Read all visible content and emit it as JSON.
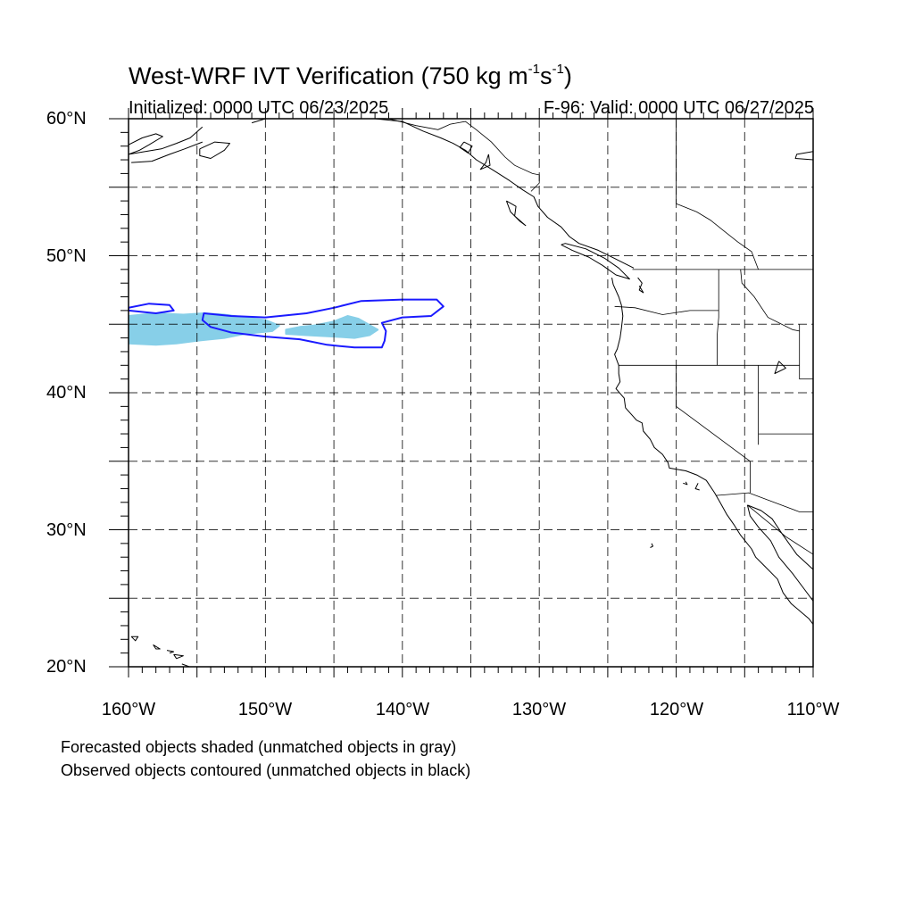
{
  "title": {
    "prefix": "West-WRF IVT Verification (750 kg m",
    "sup1": "-1",
    "mid": "s",
    "sup2": "-1",
    "suffix": ")"
  },
  "initialized": "Initialized: 0000 UTC 06/23/2025",
  "valid": "F-96: Valid: 0000 UTC 06/27/2025",
  "lat_labels": [
    "60°N",
    "50°N",
    "40°N",
    "30°N",
    "20°N"
  ],
  "lon_labels": [
    "160°W",
    "150°W",
    "140°W",
    "130°W",
    "120°W",
    "110°W"
  ],
  "footnotes": [
    "Forecasted objects shaded (unmatched objects in gray)",
    "Observed objects contoured (unmatched objects in black)"
  ],
  "colors": {
    "forecast_fill": "#87cfe8",
    "observed_contour": "#1a1aff",
    "coast": "#000000",
    "grid": "#000000"
  },
  "map": {
    "lon_range": [
      -160,
      -110
    ],
    "lat_range": [
      20,
      60
    ],
    "grid_lon_step": 5,
    "grid_lat_step": 5,
    "grid_style": "dashed",
    "forecast_objects": [
      {
        "coords": [
          [
            -160,
            45.6
          ],
          [
            -158,
            45.8
          ],
          [
            -156,
            45.7
          ],
          [
            -154.5,
            45.8
          ],
          [
            -153,
            45.7
          ],
          [
            -151.5,
            45.5
          ],
          [
            -150,
            45.3
          ],
          [
            -149,
            44.9
          ],
          [
            -149.5,
            44.5
          ],
          [
            -151.5,
            44.3
          ],
          [
            -153,
            44.0
          ],
          [
            -155,
            43.8
          ],
          [
            -156.5,
            43.6
          ],
          [
            -158,
            43.5
          ],
          [
            -160,
            43.6
          ]
        ]
      },
      {
        "coords": [
          [
            -148.5,
            44.6
          ],
          [
            -147.5,
            44.8
          ],
          [
            -146.5,
            44.9
          ],
          [
            -145,
            45.2
          ],
          [
            -144,
            45.6
          ],
          [
            -143.2,
            45.4
          ],
          [
            -142.5,
            45.0
          ],
          [
            -141.8,
            44.6
          ],
          [
            -142.4,
            44.2
          ],
          [
            -143.5,
            44.0
          ],
          [
            -145,
            44.1
          ],
          [
            -147,
            44.2
          ],
          [
            -148.5,
            44.3
          ]
        ]
      }
    ],
    "observed_objects": [
      {
        "coords": [
          [
            -160,
            46.2
          ],
          [
            -158.5,
            46.5
          ],
          [
            -157,
            46.4
          ],
          [
            -156.7,
            46.0
          ],
          [
            -158,
            45.8
          ],
          [
            -160,
            46.0
          ]
        ]
      },
      {
        "coords": [
          [
            -154.5,
            45.8
          ],
          [
            -152.5,
            45.6
          ],
          [
            -150,
            45.5
          ],
          [
            -147,
            45.8
          ],
          [
            -145,
            46.2
          ],
          [
            -143,
            46.7
          ],
          [
            -140,
            46.8
          ],
          [
            -137.5,
            46.8
          ],
          [
            -137,
            46.3
          ],
          [
            -137.9,
            45.6
          ],
          [
            -140,
            45.5
          ],
          [
            -141.5,
            45.1
          ],
          [
            -141.2,
            44.5
          ],
          [
            -141.3,
            43.8
          ],
          [
            -141.5,
            43.3
          ],
          [
            -143.5,
            43.3
          ],
          [
            -145.5,
            43.5
          ],
          [
            -147.5,
            43.9
          ],
          [
            -150,
            44.1
          ],
          [
            -152.5,
            44.4
          ],
          [
            -154,
            44.8
          ],
          [
            -154.6,
            45.3
          ],
          [
            -154.5,
            45.8
          ]
        ]
      }
    ],
    "coastlines": [
      [
        [
          -110,
          57.6
        ],
        [
          -111.2,
          57.4
        ],
        [
          -111.3,
          57.1
        ],
        [
          -110,
          57.0
        ]
      ],
      [
        [
          -160,
          58.1
        ],
        [
          -159,
          58.6
        ],
        [
          -158,
          58.9
        ],
        [
          -157.5,
          58.7
        ],
        [
          -158.5,
          58.1
        ],
        [
          -159.2,
          57.7
        ],
        [
          -160,
          57.4
        ],
        [
          -157.6,
          57.8
        ],
        [
          -156.5,
          58.2
        ],
        [
          -155.5,
          58.6
        ],
        [
          -154.6,
          59.4
        ]
      ],
      [
        [
          -159.8,
          56.8
        ],
        [
          -158.3,
          56.9
        ],
        [
          -157,
          57.4
        ],
        [
          -155.9,
          57.8
        ],
        [
          -154.6,
          58.3
        ]
      ],
      [
        [
          -154.8,
          57.8
        ],
        [
          -153.7,
          58.3
        ],
        [
          -152.6,
          58.2
        ],
        [
          -153,
          57.7
        ],
        [
          -154,
          57.1
        ],
        [
          -154.8,
          57.3
        ],
        [
          -154.8,
          57.8
        ]
      ],
      [
        [
          -151,
          59.7
        ],
        [
          -150,
          60
        ],
        [
          -148,
          60
        ],
        [
          -146,
          60
        ],
        [
          -144.5,
          60
        ],
        [
          -142,
          60
        ],
        [
          -140,
          59.8
        ],
        [
          -138.5,
          59.1
        ],
        [
          -137.2,
          58.6
        ],
        [
          -136.3,
          58.2
        ],
        [
          -135.4,
          57.7
        ],
        [
          -134.6,
          57.0
        ],
        [
          -133.3,
          56.2
        ],
        [
          -132.2,
          55.5
        ],
        [
          -131.2,
          54.8
        ],
        [
          -130.4,
          54.3
        ],
        [
          -130.1,
          53.6
        ],
        [
          -129.4,
          52.8
        ],
        [
          -128.4,
          52.1
        ],
        [
          -127.8,
          51.4
        ],
        [
          -127.1,
          50.9
        ],
        [
          -125.7,
          50.4
        ],
        [
          -124.5,
          49.8
        ],
        [
          -123.1,
          49.1
        ]
      ],
      [
        [
          -135.5,
          58.3
        ],
        [
          -134.9,
          58.0
        ],
        [
          -135.2,
          57.5
        ],
        [
          -135.8,
          57.9
        ],
        [
          -135.5,
          58.3
        ]
      ],
      [
        [
          -133.7,
          57.4
        ],
        [
          -133.9,
          56.8
        ],
        [
          -134.3,
          56.3
        ],
        [
          -133.6,
          56.6
        ],
        [
          -133.7,
          57.4
        ]
      ],
      [
        [
          -132.4,
          54.0
        ],
        [
          -131.7,
          53.6
        ],
        [
          -131.8,
          52.9
        ],
        [
          -131.0,
          52.2
        ],
        [
          -131.4,
          52.5
        ],
        [
          -132.1,
          53.2
        ],
        [
          -132.4,
          54.0
        ]
      ],
      [
        [
          -128.4,
          50.8
        ],
        [
          -127.6,
          50.4
        ],
        [
          -126.4,
          49.9
        ],
        [
          -125.4,
          49.3
        ],
        [
          -124.4,
          48.6
        ],
        [
          -123.4,
          48.3
        ],
        [
          -124.2,
          49.1
        ],
        [
          -125.2,
          49.8
        ],
        [
          -126.6,
          50.5
        ],
        [
          -128.1,
          50.9
        ],
        [
          -128.4,
          50.8
        ]
      ],
      [
        [
          -122.8,
          48.4
        ],
        [
          -122.5,
          48.0
        ],
        [
          -122.7,
          47.5
        ],
        [
          -122.4,
          47.3
        ],
        [
          -122.7,
          47.8
        ]
      ],
      [
        [
          -124.7,
          48.4
        ],
        [
          -124.6,
          47.9
        ],
        [
          -124.2,
          47.0
        ],
        [
          -124.0,
          46.4
        ],
        [
          -123.9,
          45.6
        ],
        [
          -124.0,
          44.7
        ],
        [
          -124.1,
          44.0
        ],
        [
          -124.3,
          43.2
        ],
        [
          -124.5,
          42.8
        ],
        [
          -124.2,
          42.0
        ],
        [
          -124.2,
          41.4
        ],
        [
          -124.1,
          40.8
        ],
        [
          -124.4,
          40.3
        ],
        [
          -123.8,
          39.6
        ],
        [
          -123.7,
          38.9
        ],
        [
          -122.9,
          38.0
        ],
        [
          -122.5,
          37.8
        ],
        [
          -122.4,
          37.2
        ],
        [
          -121.9,
          36.6
        ],
        [
          -121.6,
          36.0
        ],
        [
          -121.0,
          35.5
        ],
        [
          -120.6,
          34.9
        ],
        [
          -120.5,
          34.5
        ],
        [
          -119.3,
          34.3
        ],
        [
          -118.5,
          34.0
        ],
        [
          -117.8,
          33.6
        ],
        [
          -117.2,
          32.7
        ],
        [
          -116.8,
          32.0
        ],
        [
          -116.3,
          31.1
        ],
        [
          -115.8,
          30.4
        ],
        [
          -115.3,
          29.6
        ],
        [
          -114.5,
          28.6
        ],
        [
          -114.2,
          28.0
        ],
        [
          -113.5,
          27.3
        ],
        [
          -112.6,
          26.4
        ],
        [
          -112.2,
          25.4
        ],
        [
          -111.6,
          24.6
        ],
        [
          -110.3,
          23.5
        ],
        [
          -110,
          23.1
        ]
      ],
      [
        [
          -114.8,
          31.8
        ],
        [
          -114.6,
          31.0
        ],
        [
          -114.0,
          30.2
        ],
        [
          -113.1,
          29.2
        ],
        [
          -112.5,
          28.0
        ],
        [
          -111.5,
          26.8
        ],
        [
          -110.6,
          25.6
        ],
        [
          -110,
          24.8
        ]
      ],
      [
        [
          -114.8,
          31.8
        ],
        [
          -113.8,
          31.4
        ],
        [
          -113.0,
          30.8
        ],
        [
          -112.2,
          29.6
        ],
        [
          -111.2,
          28.2
        ],
        [
          -110,
          27.1
        ]
      ],
      [
        [
          -112.5,
          42.3
        ],
        [
          -112.0,
          41.8
        ],
        [
          -112.8,
          41.4
        ],
        [
          -112.5,
          42.3
        ]
      ],
      [
        [
          -119.5,
          33.4
        ],
        [
          -119.2,
          33.3
        ],
        [
          -119.3,
          33.5
        ]
      ],
      [
        [
          -118.4,
          33.4
        ],
        [
          -118.6,
          33.0
        ],
        [
          -118.3,
          32.9
        ]
      ],
      [
        [
          -121.8,
          29.0
        ],
        [
          -121.7,
          28.8
        ],
        [
          -121.9,
          28.7
        ]
      ],
      [
        [
          -159.8,
          22.2
        ],
        [
          -159.3,
          22.2
        ],
        [
          -159.5,
          21.9
        ],
        [
          -159.8,
          22.2
        ]
      ],
      [
        [
          -158.2,
          21.6
        ],
        [
          -157.7,
          21.3
        ],
        [
          -158.0,
          21.3
        ],
        [
          -158.2,
          21.6
        ]
      ],
      [
        [
          -157.2,
          21.2
        ],
        [
          -156.7,
          21.1
        ],
        [
          -157.0,
          21.0
        ]
      ],
      [
        [
          -156.7,
          20.9
        ],
        [
          -156.0,
          20.8
        ],
        [
          -156.5,
          20.6
        ],
        [
          -156.7,
          20.9
        ]
      ],
      [
        [
          -156.1,
          20.2
        ],
        [
          -155.0,
          19.8
        ]
      ]
    ],
    "borders": [
      [
        [
          -123.2,
          49.0
        ],
        [
          -110,
          49.0
        ]
      ],
      [
        [
          -141,
          60
        ],
        [
          -139,
          59.5
        ],
        [
          -137.4,
          59.2
        ],
        [
          -136.5,
          59.6
        ],
        [
          -135.4,
          59.8
        ],
        [
          -134.6,
          59.2
        ],
        [
          -133.5,
          58.3
        ],
        [
          -132.5,
          57.2
        ],
        [
          -131.8,
          56.6
        ],
        [
          -130.5,
          56.0
        ],
        [
          -130.0,
          55.9
        ],
        [
          -130.0,
          55.3
        ],
        [
          -130.6,
          54.7
        ]
      ],
      [
        [
          -120,
          60
        ],
        [
          -120,
          53.8
        ],
        [
          -118.5,
          53.2
        ],
        [
          -117.5,
          52.6
        ],
        [
          -116.5,
          51.8
        ],
        [
          -115.5,
          51.0
        ],
        [
          -114.5,
          50.3
        ],
        [
          -114.0,
          49.0
        ]
      ],
      [
        [
          -124.5,
          46.3
        ],
        [
          -123,
          46.2
        ],
        [
          -121,
          45.7
        ],
        [
          -119,
          46.0
        ],
        [
          -116.9,
          46.0
        ]
      ],
      [
        [
          -116.9,
          49.0
        ],
        [
          -116.9,
          46.0
        ],
        [
          -116.9,
          45.5
        ],
        [
          -117.0,
          44.3
        ],
        [
          -117.0,
          42.0
        ]
      ],
      [
        [
          -124.2,
          42.0
        ],
        [
          -111.0,
          42.0
        ]
      ],
      [
        [
          -120,
          42.0
        ],
        [
          -120,
          39.0
        ],
        [
          -114.6,
          35.0
        ]
      ],
      [
        [
          -114.0,
          42.0
        ],
        [
          -114.0,
          36.2
        ]
      ],
      [
        [
          -114.6,
          35.0
        ],
        [
          -114.6,
          34.2
        ],
        [
          -114.6,
          32.7
        ]
      ],
      [
        [
          -114.0,
          37.0
        ],
        [
          -110,
          37.0
        ]
      ],
      [
        [
          -117.1,
          32.5
        ],
        [
          -114.7,
          32.7
        ],
        [
          -111.0,
          31.3
        ],
        [
          -110,
          31.3
        ]
      ],
      [
        [
          -115.3,
          49.0
        ],
        [
          -115.2,
          48.0
        ],
        [
          -114.3,
          47.0
        ],
        [
          -113.3,
          45.5
        ],
        [
          -111.5,
          44.6
        ],
        [
          -111.0,
          44.5
        ]
      ],
      [
        [
          -111.0,
          45.0
        ],
        [
          -111.0,
          41.0
        ],
        [
          -110,
          41.0
        ]
      ],
      [
        [
          -114.8,
          31.8
        ],
        [
          -112.0,
          29.5
        ],
        [
          -110,
          28.2
        ]
      ]
    ]
  }
}
